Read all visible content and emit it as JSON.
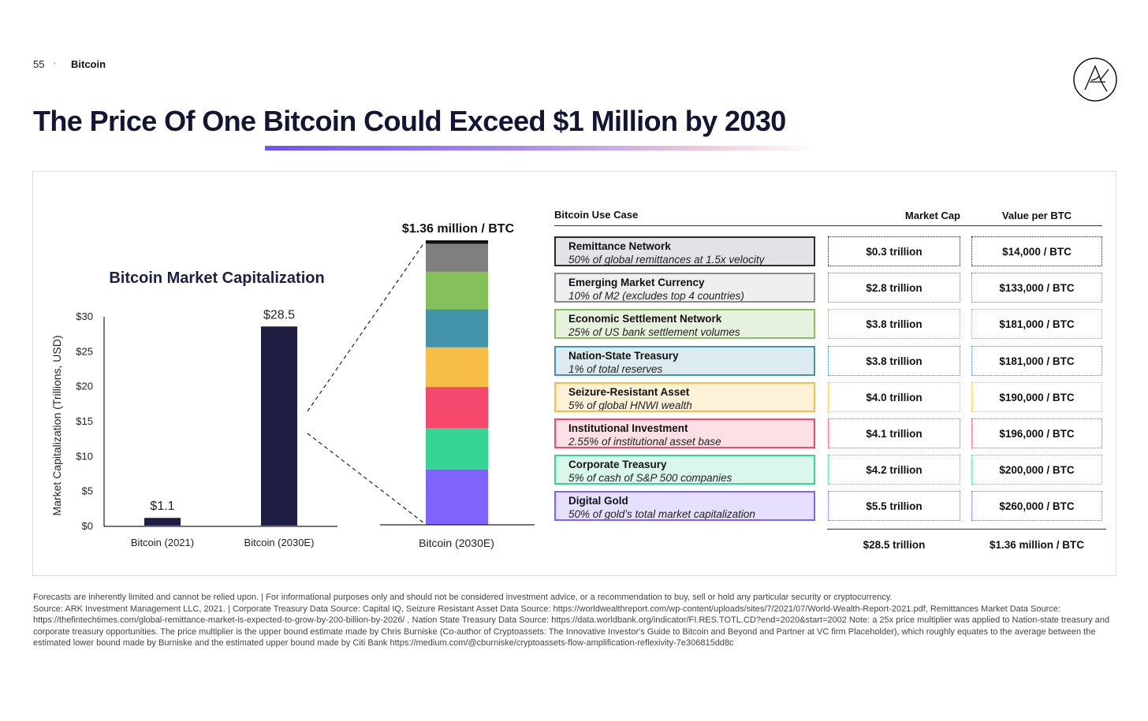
{
  "header": {
    "page_number": "55",
    "separator": "·",
    "section": "Bitcoin"
  },
  "title": "The Price Of One Bitcoin Could Exceed $1 Million by 2030",
  "colors": {
    "navy": "#1f1d43",
    "accent_gradient": [
      "#6f55e8",
      "#f2c9dc"
    ]
  },
  "chart_data": [
    {
      "type": "bar",
      "title": "Bitcoin Market Capitalization",
      "ylabel": "Market Capitalization (Trillions, USD)",
      "categories": [
        "Bitcoin (2021)",
        "Bitcoin (2030E)"
      ],
      "values": [
        1.1,
        28.5
      ],
      "data_labels": [
        "$1.1",
        "$28.5"
      ],
      "ylim": [
        0,
        30
      ],
      "yticks": [
        0,
        5,
        10,
        15,
        20,
        25,
        30
      ],
      "ytick_labels": [
        "$0",
        "$5",
        "$10",
        "$15",
        "$20",
        "$25",
        "$30"
      ],
      "bar_color": "#1f1d43",
      "grid": false
    },
    {
      "type": "bar",
      "stacked": true,
      "title": "$1.36 million / BTC",
      "categories": [
        "Bitcoin (2030E)"
      ],
      "total_value": 28.5,
      "series": [
        {
          "name": "Digital Gold",
          "values": [
            5.5
          ],
          "color": "#7f63fa"
        },
        {
          "name": "Corporate Treasury",
          "values": [
            4.2
          ],
          "color": "#36d595"
        },
        {
          "name": "Institutional Investment",
          "values": [
            4.1
          ],
          "color": "#f6476c"
        },
        {
          "name": "Seizure-Resistant Asset",
          "values": [
            4.0
          ],
          "color": "#f8bd47"
        },
        {
          "name": "Nation-State Treasury",
          "values": [
            3.8
          ],
          "color": "#4394ab"
        },
        {
          "name": "Economic Settlement Network",
          "values": [
            3.8
          ],
          "color": "#86c05a"
        },
        {
          "name": "Emerging Market Currency",
          "values": [
            2.8
          ],
          "color": "#7f7f7f"
        },
        {
          "name": "Remittance Network",
          "values": [
            0.3
          ],
          "color": "#111111"
        }
      ]
    }
  ],
  "table": {
    "headers": {
      "use_case": "Bitcoin Use Case",
      "market_cap": "Market Cap",
      "value_per_btc": "Value per BTC"
    },
    "rows": [
      {
        "name": "Remittance Network",
        "desc": "50% of global remittances at 1.5x velocity",
        "market_cap": "$0.3 trillion",
        "value": "$14,000 / BTC",
        "border": "#2b2b2b",
        "fill": "#e2e2e7",
        "dot": "#111111"
      },
      {
        "name": "Emerging Market Currency",
        "desc": "10% of M2 (excludes top 4 countries)",
        "market_cap": "$2.8 trillion",
        "value": "$133,000 / BTC",
        "border": "#8a8a8a",
        "fill": "#efeff1",
        "dot": "#7f7f7f"
      },
      {
        "name": "Economic Settlement Network",
        "desc": "25% of US bank settlement volumes",
        "market_cap": "$3.8 trillion",
        "value": "$181,000 / BTC",
        "border": "#86c05a",
        "fill": "#e7f2de",
        "dot": "#86c05a"
      },
      {
        "name": "Nation-State Treasury",
        "desc": "1% of total reserves",
        "market_cap": "$3.8 trillion",
        "value": "$181,000 / BTC",
        "border": "#4394ab",
        "fill": "#dcebef",
        "dot": "#4394ab"
      },
      {
        "name": "Seizure-Resistant Asset",
        "desc": "5% of global HNWI wealth",
        "market_cap": "$4.0 trillion",
        "value": "$190,000 / BTC",
        "border": "#f8bd47",
        "fill": "#fdf1d8",
        "dot": "#f8bd47"
      },
      {
        "name": "Institutional Investment",
        "desc": "2.55% of institutional asset base",
        "market_cap": "$4.1 trillion",
        "value": "$196,000 / BTC",
        "border": "#f6476c",
        "fill": "#fde0e6",
        "dot": "#f6476c"
      },
      {
        "name": "Corporate Treasury",
        "desc": "5% of cash of S&P 500 companies",
        "market_cap": "$4.2 trillion",
        "value": "$200,000 / BTC",
        "border": "#36d595",
        "fill": "#daf7eb",
        "dot": "#36d595"
      },
      {
        "name": "Digital Gold",
        "desc": "50% of gold’s total market capitalization",
        "market_cap": "$5.5 trillion",
        "value": "$260,000 / BTC",
        "border": "#7f63fa",
        "fill": "#e6e0fe",
        "dot": "#7f63fa"
      }
    ],
    "totals": {
      "market_cap": "$28.5 trillion",
      "value": "$1.36 million / BTC"
    }
  },
  "footnotes": [
    "Forecasts are inherently limited and cannot be relied upon. | For informational purposes only and should not be considered investment advice, or a recommendation to buy, sell or hold any particular security or cryptocurrency.",
    "Source: ARK Investment Management LLC, 2021.  |  Corporate Treasury Data Source: Capital IQ, Seizure Resistant Asset Data Source: https://worldwealthreport.com/wp-content/uploads/sites/7/2021/07/World-Wealth-Report-2021.pdf, Remittances Market Data Source: https://thefintechtimes.com/global-remittance-market-is-expected-to-grow-by-200-billion-by-2026/ , Nation State Treasury Data Source: https://data.worldbank.org/indicator/FI.RES.TOTL.CD?end=2020&start=2002 Note: a 25x price multiplier was applied to Nation-state treasury and corporate treasury opportunities. The price multiplier is  the upper bound estimate made by Chris Burniske (Co-author of Cryptoassets: The Innovative Investor's Guide to Bitcoin and Beyond and Partner at VC firm Placeholder), which roughly equates to the average between the estimated lower bound made by Burniske and the estimated upper bound made by Citi Bank https://medium.com/@cburniske/cryptoassets-flow-amplification-reflexivity-7e306815dd8c"
  ]
}
